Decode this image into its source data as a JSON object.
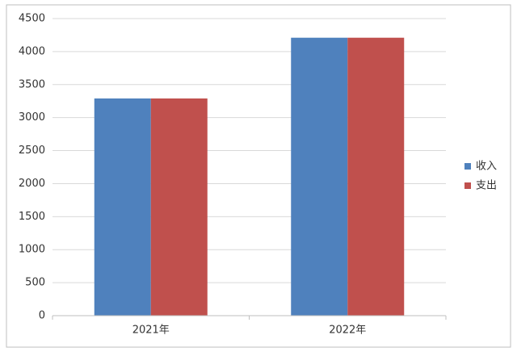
{
  "chart_data": {
    "type": "bar",
    "categories": [
      "2021年",
      "2022年"
    ],
    "series": [
      {
        "name": "收入",
        "color": "#4f81bd",
        "values": [
          3290,
          4210
        ]
      },
      {
        "name": "支出",
        "color": "#c0504d",
        "values": [
          3290,
          4210
        ]
      }
    ],
    "ylim": [
      0,
      4500
    ],
    "yticks": [
      0,
      500,
      1000,
      1500,
      2000,
      2500,
      3000,
      3500,
      4000,
      4500
    ],
    "grid": true,
    "legend": "right"
  }
}
